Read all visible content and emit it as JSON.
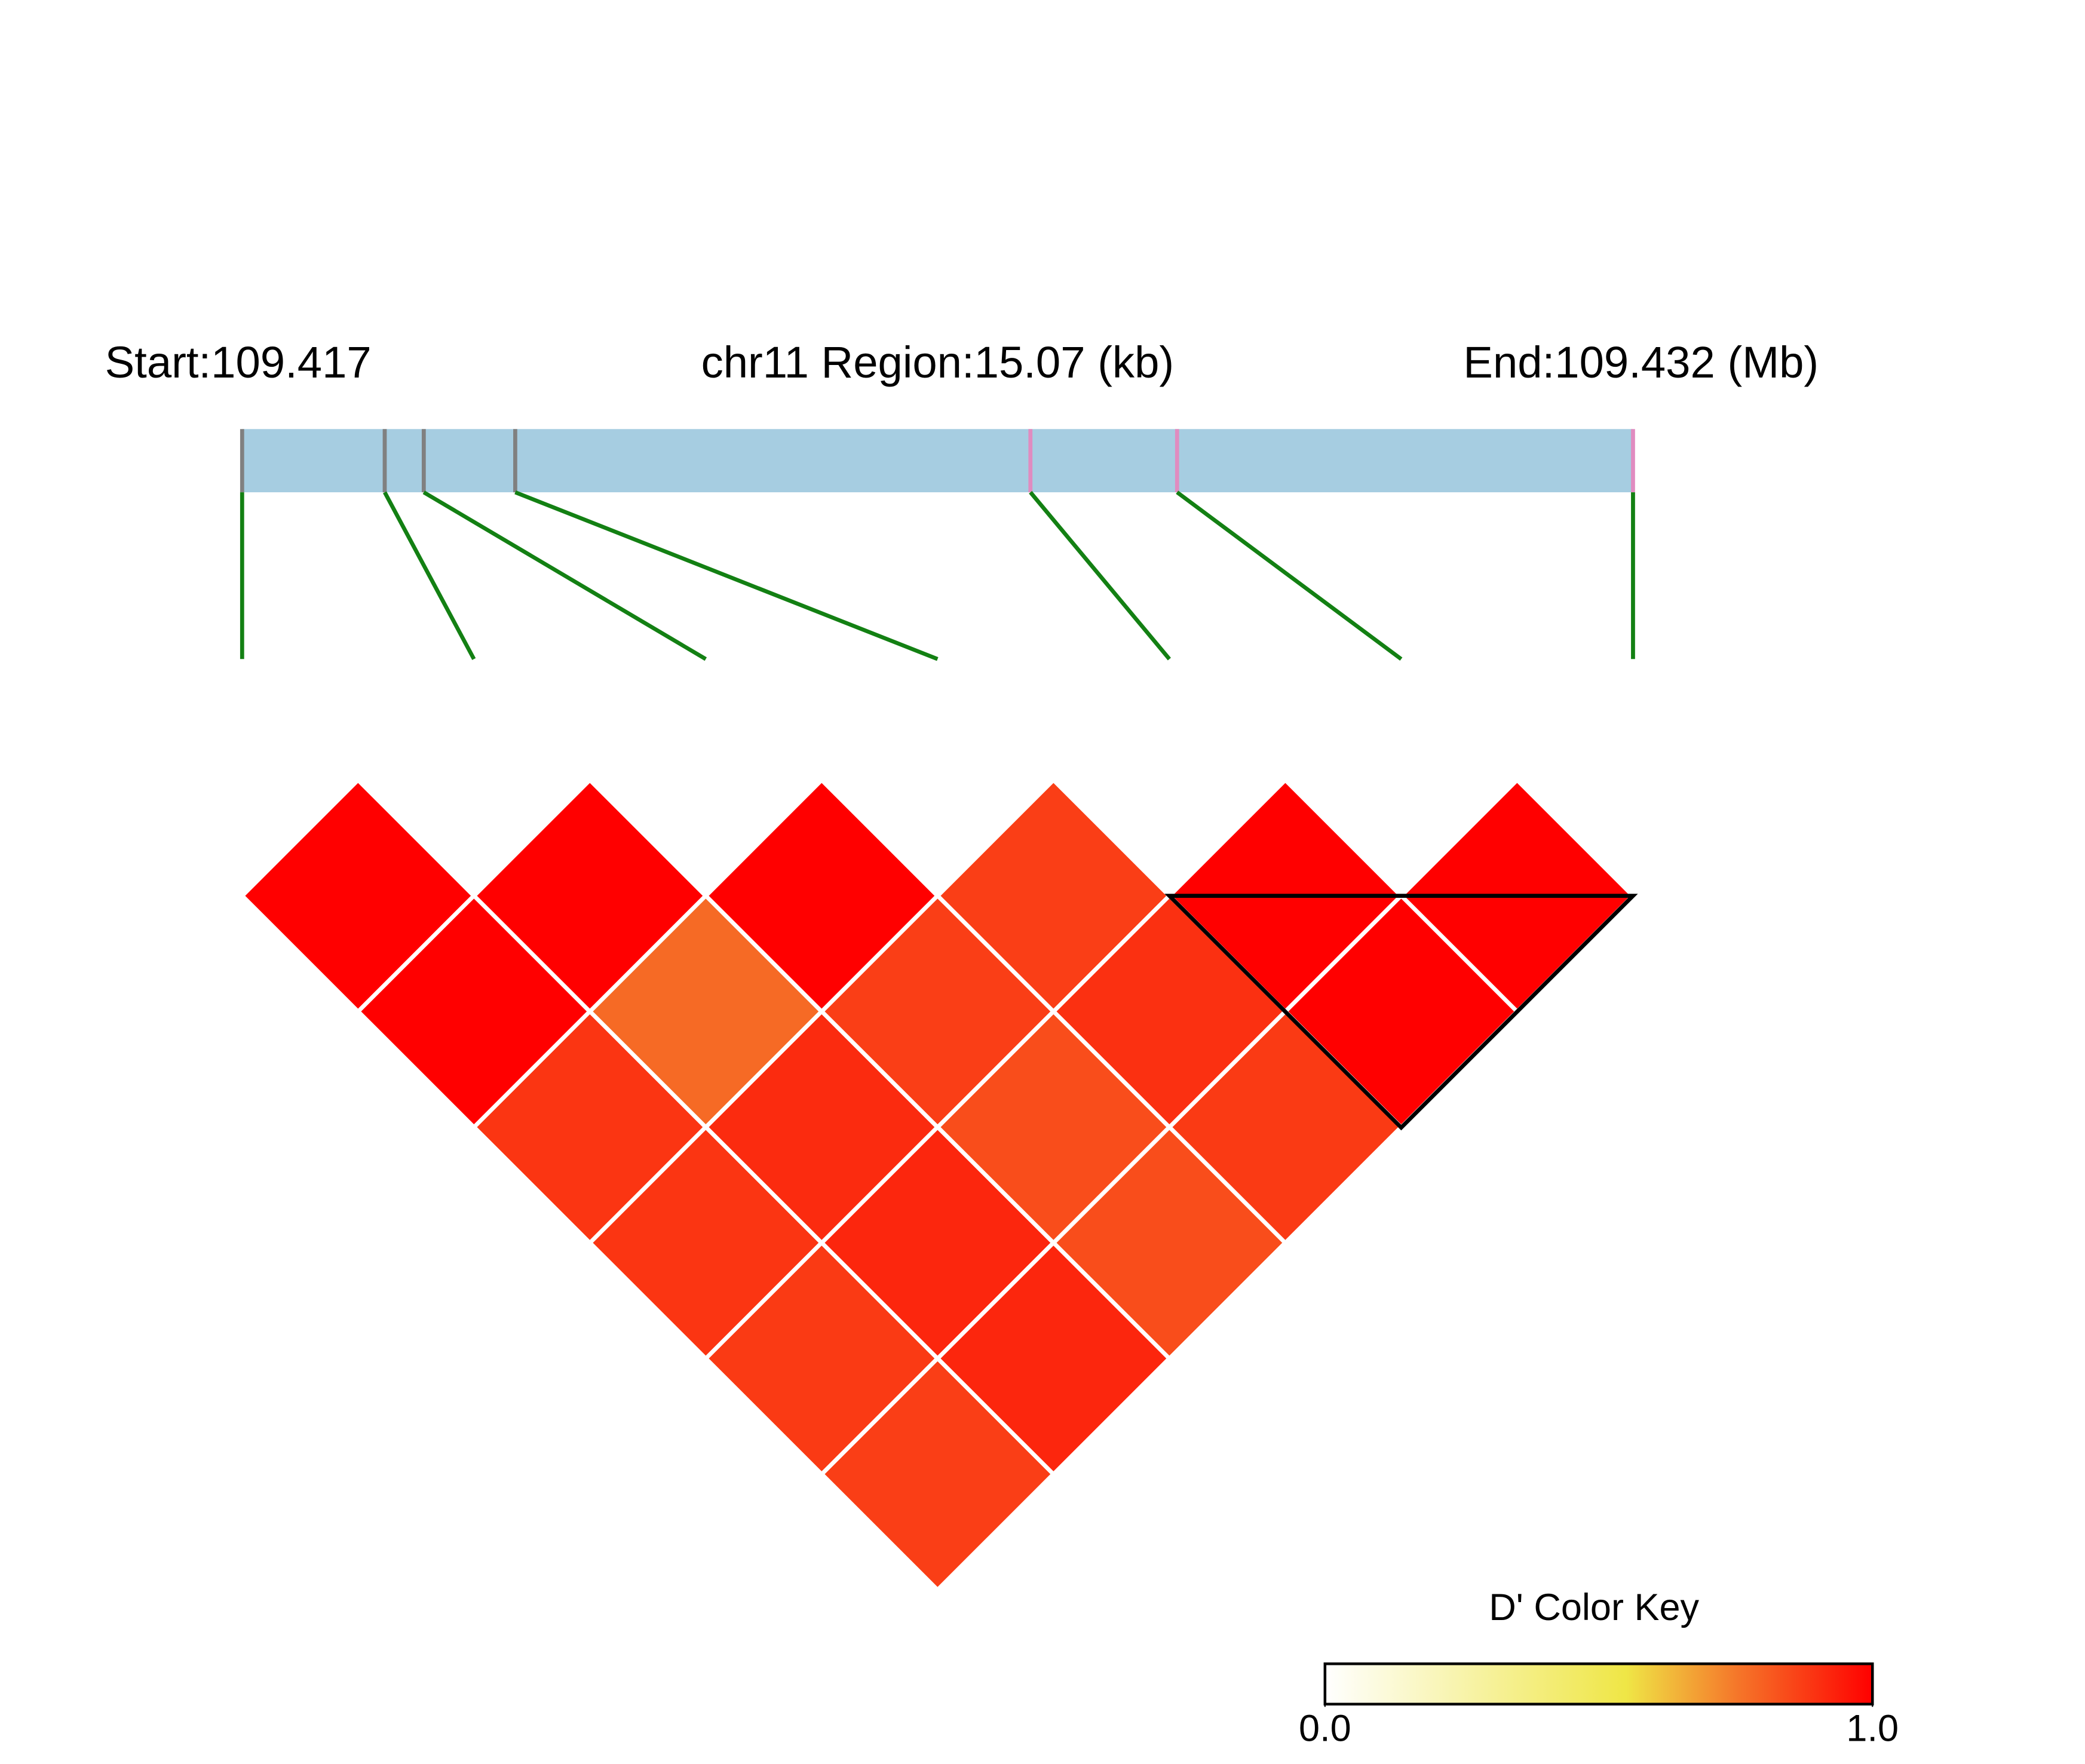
{
  "chart_data": {
    "type": "ld-heatmap",
    "start_label": "Start:109.417",
    "title": "chr11 Region:15.07 (kb)",
    "end_label": "End:109.432 (Mb)",
    "positions": [
      0,
      1.545,
      1.968,
      2.959,
      8.541,
      10.13,
      15.07
    ],
    "marker_colors": [
      "#808080",
      "#808080",
      "#808080",
      "#808080",
      "#e08cc0",
      "#e08cc0",
      "#e08cc0"
    ],
    "xlim": [
      0,
      15.07
    ],
    "bar_color": "#a6cde1",
    "connector_color": "#138013",
    "values": [
      [
        1,
        1,
        1,
        0.87,
        1,
        1
      ],
      [
        1,
        0.78,
        0.87,
        0.9,
        1
      ],
      [
        0.89,
        0.91,
        0.84,
        0.88
      ],
      [
        0.89,
        0.92,
        0.84
      ],
      [
        0.88,
        0.92
      ],
      [
        0.87
      ]
    ],
    "blocks": [
      {
        "start": 4,
        "end": 6
      }
    ],
    "colorscale": [
      [
        0,
        "#ffffff"
      ],
      [
        0.55,
        "#efe646"
      ],
      [
        0.75,
        "#f5782a"
      ],
      [
        1,
        "#ff0000"
      ]
    ],
    "legend_title": "D' Color Key",
    "legend_ticks": [
      {
        "value": 0,
        "label": "0.0"
      },
      {
        "value": 1,
        "label": "1.0"
      }
    ]
  }
}
